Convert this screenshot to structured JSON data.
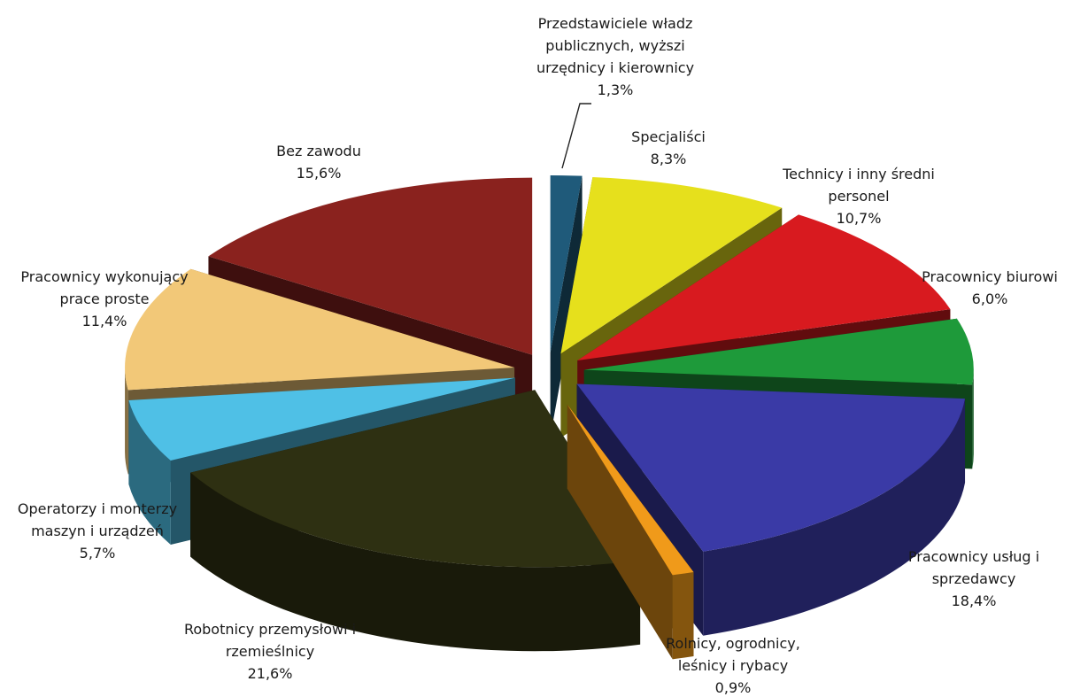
{
  "chart_data": {
    "type": "pie",
    "title": "",
    "series": [
      {
        "label": [
          "Przedstawiciele władz",
          "publicznych, wyższi",
          "urzędnicy i  kierownicy"
        ],
        "value_label": "1,3%",
        "value": 1.3,
        "color": "#1f5a7a"
      },
      {
        "label": [
          "Specjaliści"
        ],
        "value_label": "8,3%",
        "value": 8.3,
        "color": "#e6e01c"
      },
      {
        "label": [
          "Technicy i inny średni",
          "personel"
        ],
        "value_label": "10,7%",
        "value": 10.7,
        "color": "#d81a1f"
      },
      {
        "label": [
          "Pracownicy biurowi"
        ],
        "value_label": "6,0%",
        "value": 6.0,
        "color": "#1e9a3a"
      },
      {
        "label": [
          "Pracownicy usług i",
          "sprzedawcy"
        ],
        "value_label": "18,4%",
        "value": 18.4,
        "color": "#3a3aa6"
      },
      {
        "label": [
          "Rolnicy, ogrodnicy,",
          "leśnicy i rybacy"
        ],
        "value_label": "0,9%",
        "value": 0.9,
        "color": "#f09a1a"
      },
      {
        "label": [
          "Robotnicy przemysłowi i",
          "rzemieślnicy"
        ],
        "value_label": "21,6%",
        "value": 21.6,
        "color": "#2e3012"
      },
      {
        "label": [
          "Operatorzy i monterzy",
          "maszyn i urządzeń"
        ],
        "value_label": "5,7%",
        "value": 5.7,
        "color": "#4fc0e6"
      },
      {
        "label": [
          "Pracownicy wykonujący",
          "prace proste"
        ],
        "value_label": "11,4%",
        "value": 11.4,
        "color": "#f2c878"
      },
      {
        "label": [
          "Bez zawodu"
        ],
        "value_label": "15,6%",
        "value": 15.6,
        "color": "#8a221e"
      }
    ],
    "style": "3d-exploded-pie",
    "legend": "none"
  }
}
